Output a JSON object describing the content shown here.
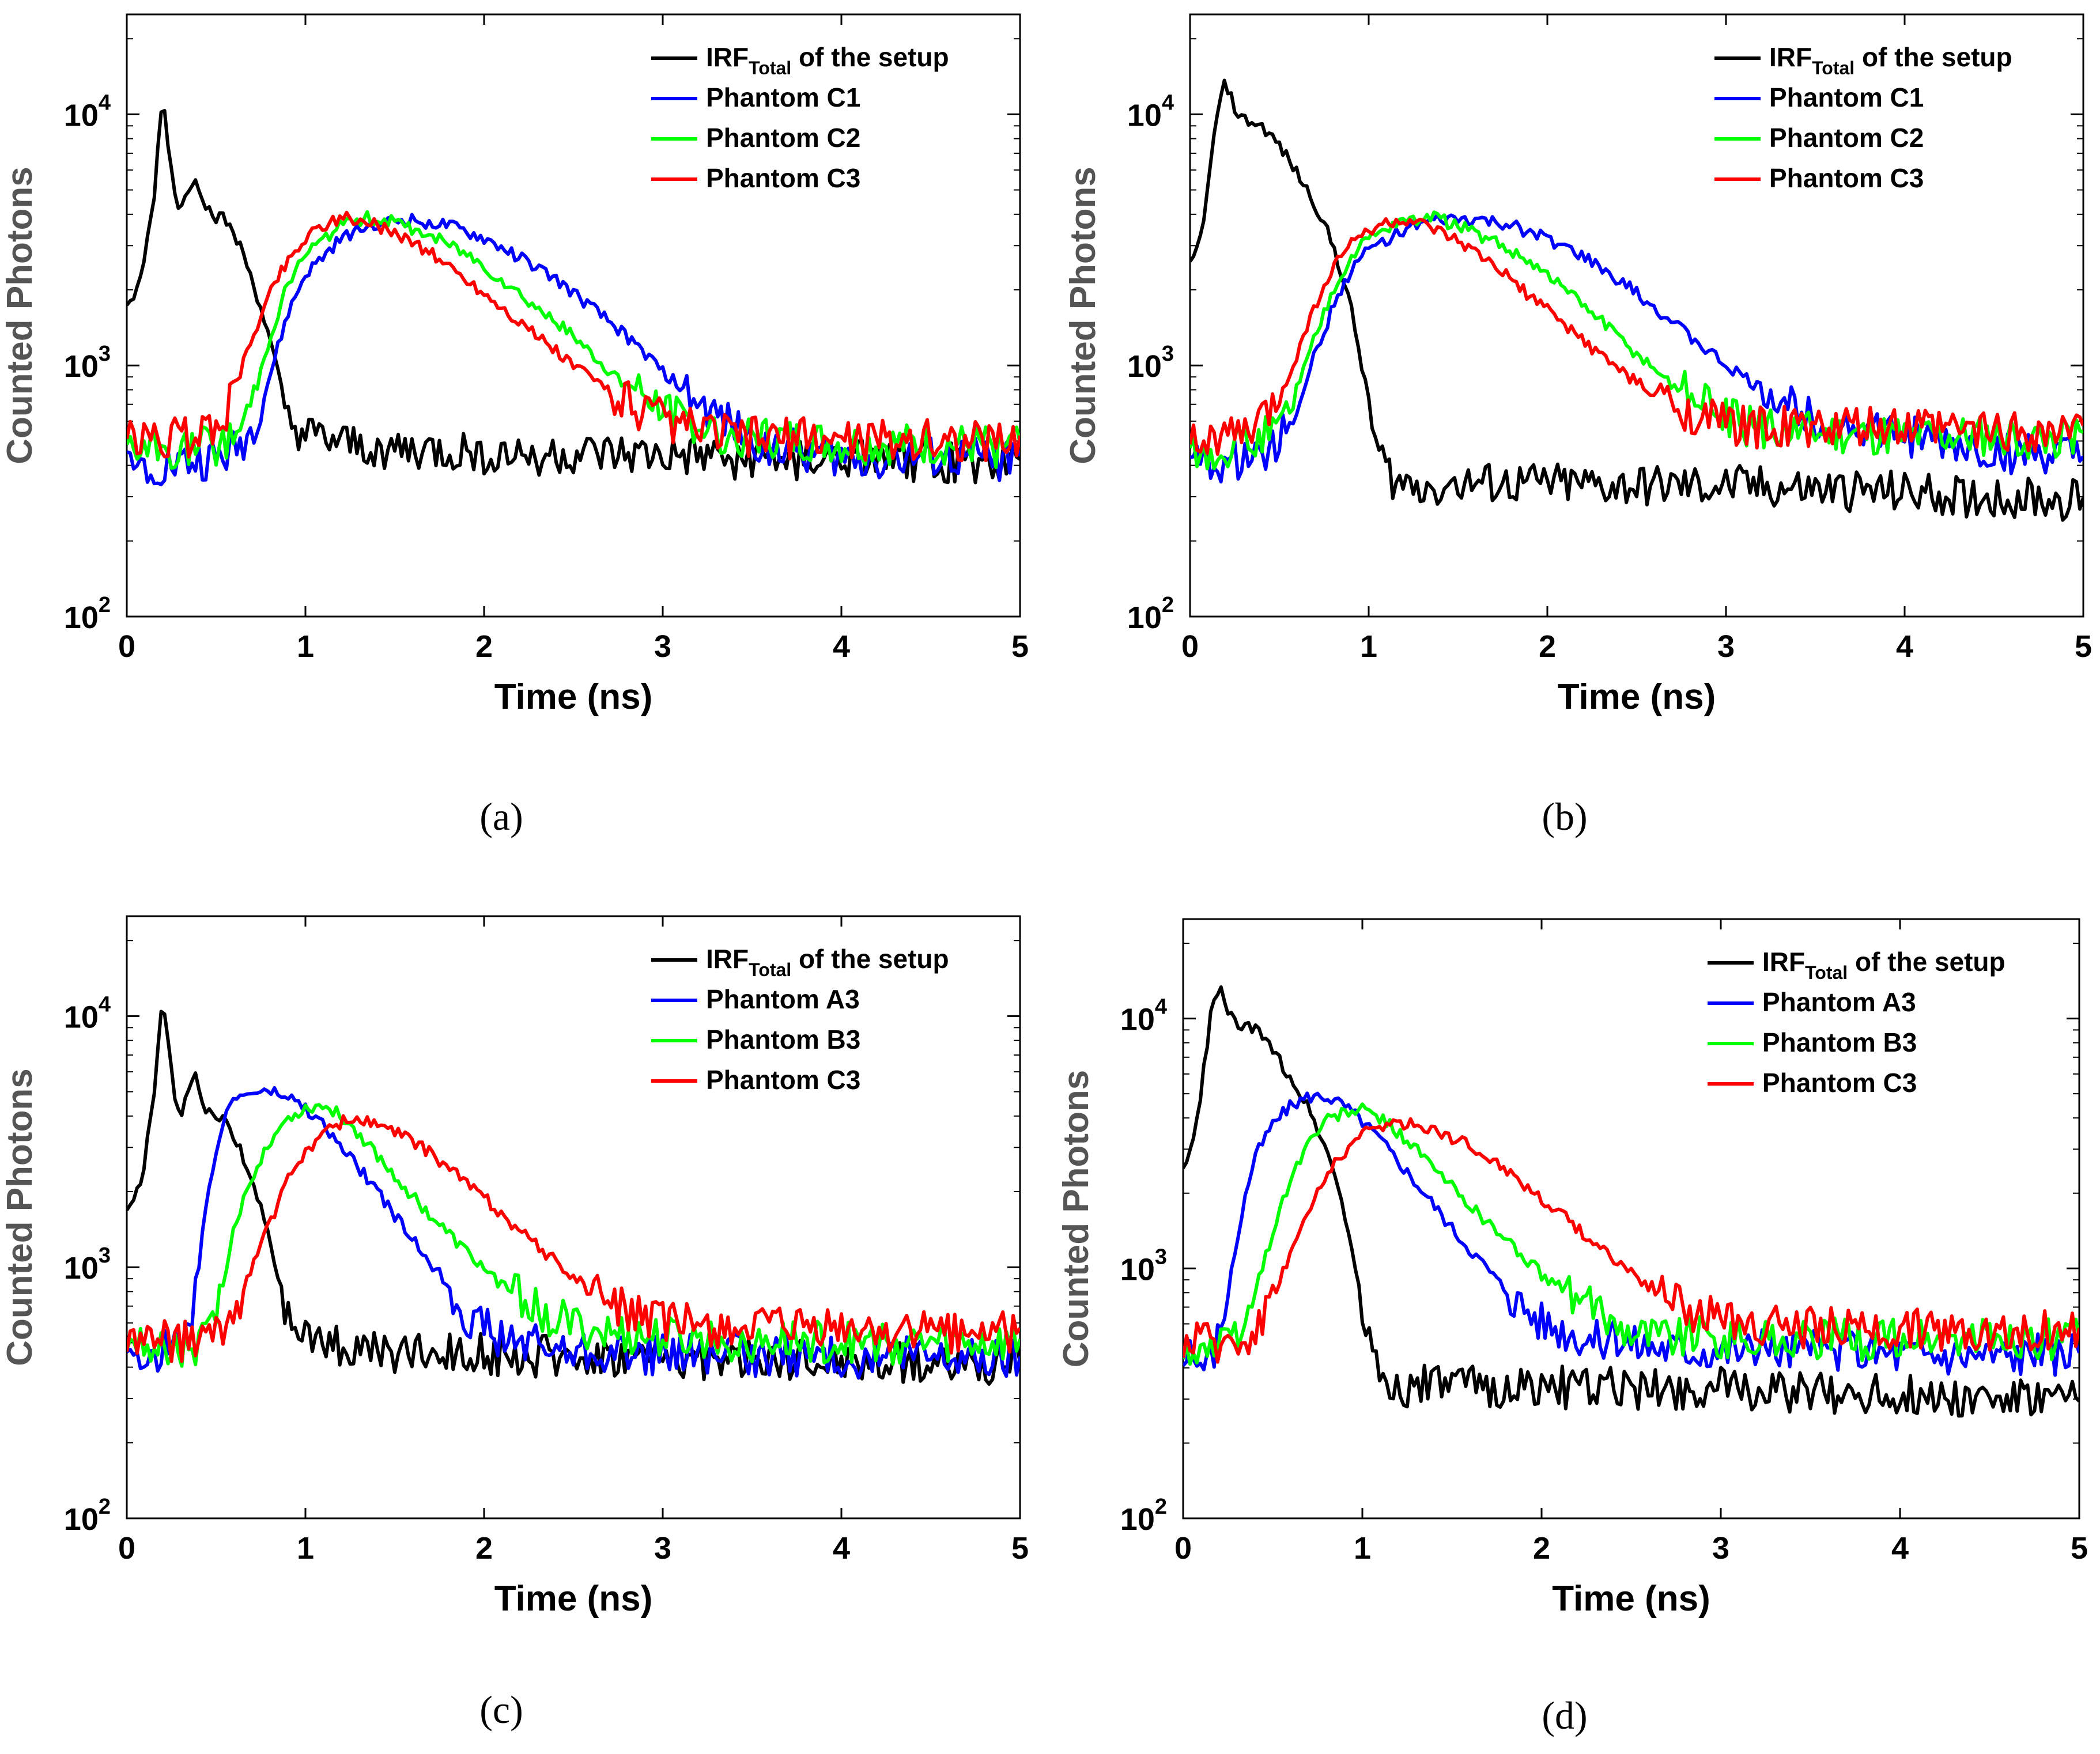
{
  "figure": {
    "panels_caption": [
      "(a)",
      "(b)",
      "(c)",
      "(d)"
    ]
  },
  "chart_data": [
    {
      "type": "line",
      "panel": "(a)",
      "xlabel": "Time (ns)",
      "ylabel": "Counted Photons",
      "xlim": [
        0,
        5
      ],
      "ylim": [
        100,
        25000
      ],
      "yscale": "log",
      "xticks": [
        "0",
        "1",
        "2",
        "3",
        "4",
        "5"
      ],
      "yticks": [
        {
          "base": "10",
          "exp": "2"
        },
        {
          "base": "10",
          "exp": "3"
        },
        {
          "base": "10",
          "exp": "4"
        }
      ],
      "legend_position": "top-right",
      "series": [
        {
          "name": "IRF",
          "name_sub": "Total",
          "name_suffix": " of the setup",
          "color": "#000000",
          "x": [
            0,
            0.08,
            0.15,
            0.2,
            0.26,
            0.3,
            0.38,
            0.45,
            0.5,
            0.55,
            0.6,
            0.65,
            0.7,
            0.75,
            0.8,
            0.85,
            0.9,
            1.0,
            1.3,
            1.8,
            2.5,
            3.2,
            4.0,
            5.0
          ],
          "y": [
            1650,
            2200,
            4500,
            12000,
            5200,
            4100,
            5800,
            4200,
            3900,
            3800,
            3300,
            2800,
            2200,
            1700,
            1250,
            900,
            600,
            520,
            470,
            450,
            440,
            430,
            420,
            410
          ]
        },
        {
          "name": "Phantom C1",
          "color": "#0000ff",
          "x": [
            0,
            0.3,
            0.5,
            0.6,
            0.7,
            0.8,
            0.9,
            1.0,
            1.2,
            1.4,
            1.6,
            1.8,
            2.0,
            2.2,
            2.4,
            2.6,
            2.8,
            3.0,
            3.2,
            3.5,
            4.0,
            5.0
          ],
          "y": [
            400,
            410,
            420,
            450,
            550,
            900,
            1600,
            2300,
            3200,
            3700,
            3800,
            3600,
            3200,
            2700,
            2200,
            1700,
            1300,
            950,
            700,
            500,
            430,
            420
          ]
        },
        {
          "name": "Phantom C2",
          "color": "#00ff00",
          "x": [
            0,
            0.3,
            0.5,
            0.6,
            0.7,
            0.8,
            0.9,
            1.0,
            1.2,
            1.35,
            1.5,
            1.7,
            1.9,
            2.1,
            2.3,
            2.5,
            2.7,
            2.9,
            3.1,
            3.4,
            4.0,
            5.0
          ],
          "y": [
            450,
            460,
            480,
            520,
            700,
            1300,
            2100,
            2800,
            3600,
            3900,
            3700,
            3300,
            2800,
            2200,
            1700,
            1300,
            950,
            750,
            600,
            520,
            480,
            470
          ]
        },
        {
          "name": "Phantom C3",
          "color": "#ff0000",
          "x": [
            0,
            0.3,
            0.45,
            0.55,
            0.65,
            0.75,
            0.85,
            0.95,
            1.05,
            1.2,
            1.35,
            1.5,
            1.7,
            1.9,
            2.1,
            2.3,
            2.5,
            2.7,
            2.9,
            3.1,
            3.5,
            4.0,
            5.0
          ],
          "y": [
            500,
            510,
            540,
            650,
            1000,
            1600,
            2300,
            2900,
            3500,
            3900,
            3700,
            3400,
            2800,
            2200,
            1700,
            1300,
            1000,
            800,
            650,
            560,
            520,
            510,
            500
          ]
        }
      ]
    },
    {
      "type": "line",
      "panel": "(b)",
      "xlabel": "Time (ns)",
      "ylabel": "Counted Photons",
      "xlim": [
        0,
        5
      ],
      "ylim": [
        100,
        25000
      ],
      "yscale": "log",
      "xticks": [
        "0",
        "1",
        "2",
        "3",
        "4",
        "5"
      ],
      "yticks": [
        {
          "base": "10",
          "exp": "2"
        },
        {
          "base": "10",
          "exp": "3"
        },
        {
          "base": "10",
          "exp": "4"
        }
      ],
      "legend_position": "top-right",
      "series": [
        {
          "name": "IRF",
          "name_sub": "Total",
          "name_suffix": " of the setup",
          "color": "#000000",
          "x": [
            0,
            0.05,
            0.1,
            0.15,
            0.2,
            0.25,
            0.3,
            0.4,
            0.5,
            0.6,
            0.7,
            0.8,
            0.85,
            0.9,
            0.95,
            1.0,
            1.05,
            1.15,
            1.5,
            2.0,
            2.5,
            3.0,
            3.5,
            4.0,
            4.5,
            5.0
          ],
          "y": [
            2500,
            3000,
            5000,
            10000,
            13500,
            10500,
            9500,
            9000,
            7500,
            5800,
            4400,
            3000,
            2300,
            1700,
            1100,
            700,
            450,
            340,
            340,
            335,
            330,
            330,
            320,
            310,
            300,
            290
          ]
        },
        {
          "name": "Phantom C1",
          "color": "#0000ff",
          "x": [
            0,
            0.3,
            0.5,
            0.6,
            0.7,
            0.8,
            0.9,
            1.0,
            1.2,
            1.4,
            1.6,
            1.8,
            2.0,
            2.2,
            2.4,
            2.6,
            2.8,
            3.0,
            3.2,
            3.5,
            4.0,
            4.5,
            5.0
          ],
          "y": [
            400,
            420,
            500,
            700,
            1100,
            1700,
            2400,
            2900,
            3500,
            3800,
            3800,
            3600,
            3200,
            2700,
            2200,
            1700,
            1300,
            1000,
            800,
            620,
            520,
            450,
            420
          ]
        },
        {
          "name": "Phantom C2",
          "color": "#00ff00",
          "x": [
            0,
            0.3,
            0.5,
            0.6,
            0.7,
            0.8,
            0.9,
            1.0,
            1.2,
            1.35,
            1.5,
            1.7,
            1.9,
            2.1,
            2.3,
            2.5,
            2.7,
            2.9,
            3.1,
            3.4,
            4.0,
            5.0
          ],
          "y": [
            460,
            480,
            560,
            800,
            1300,
            2000,
            2700,
            3200,
            3800,
            3900,
            3600,
            3100,
            2600,
            2000,
            1500,
            1100,
            850,
            680,
            580,
            540,
            520,
            520
          ]
        },
        {
          "name": "Phantom C3",
          "color": "#ff0000",
          "x": [
            0,
            0.3,
            0.45,
            0.55,
            0.65,
            0.75,
            0.85,
            0.95,
            1.05,
            1.2,
            1.35,
            1.5,
            1.7,
            1.9,
            2.1,
            2.3,
            2.5,
            2.7,
            2.9,
            3.1,
            3.5,
            4.0,
            5.0
          ],
          "y": [
            500,
            530,
            650,
            900,
            1400,
            2100,
            2800,
            3300,
            3600,
            3800,
            3500,
            3100,
            2500,
            1900,
            1450,
            1100,
            850,
            700,
            610,
            570,
            560,
            560,
            550
          ]
        }
      ]
    },
    {
      "type": "line",
      "panel": "(c)",
      "xlabel": "Time (ns)",
      "ylabel": "Counted Photons",
      "xlim": [
        0,
        5
      ],
      "ylim": [
        100,
        25000
      ],
      "yscale": "log",
      "xticks": [
        "0",
        "1",
        "2",
        "3",
        "4",
        "5"
      ],
      "yticks": [
        {
          "base": "10",
          "exp": "2"
        },
        {
          "base": "10",
          "exp": "3"
        },
        {
          "base": "10",
          "exp": "4"
        }
      ],
      "legend_position": "top-right",
      "series": [
        {
          "name": "IRF",
          "name_sub": "Total",
          "name_suffix": " of the setup",
          "color": "#000000",
          "x": [
            0,
            0.08,
            0.15,
            0.2,
            0.26,
            0.3,
            0.38,
            0.45,
            0.5,
            0.55,
            0.6,
            0.65,
            0.7,
            0.75,
            0.8,
            0.85,
            0.9,
            1.0,
            1.3,
            1.8,
            2.5,
            3.2,
            4.0,
            5.0
          ],
          "y": [
            1650,
            2200,
            4500,
            12000,
            5200,
            4100,
            5800,
            4200,
            3900,
            3800,
            3300,
            2800,
            2200,
            1700,
            1250,
            900,
            600,
            520,
            470,
            450,
            440,
            430,
            420,
            410
          ]
        },
        {
          "name": "Phantom A3",
          "color": "#0000ff",
          "x": [
            0,
            0.3,
            0.35,
            0.4,
            0.45,
            0.5,
            0.55,
            0.6,
            0.7,
            0.8,
            0.9,
            1.0,
            1.1,
            1.2,
            1.3,
            1.4,
            1.5,
            1.6,
            1.7,
            1.8,
            1.9,
            2.1,
            2.4,
            3.0,
            4.0,
            5.0
          ],
          "y": [
            450,
            470,
            600,
            1000,
            1800,
            3000,
            4000,
            4700,
            5000,
            5000,
            4800,
            4300,
            3700,
            3000,
            2500,
            2000,
            1600,
            1300,
            1050,
            850,
            650,
            520,
            470,
            450,
            440,
            430
          ]
        },
        {
          "name": "Phantom B3",
          "color": "#00ff00",
          "x": [
            0,
            0.4,
            0.5,
            0.55,
            0.6,
            0.7,
            0.8,
            0.9,
            1.0,
            1.1,
            1.2,
            1.3,
            1.4,
            1.5,
            1.7,
            1.9,
            2.1,
            2.3,
            2.5,
            2.7,
            3.0,
            3.5,
            4.0,
            5.0
          ],
          "y": [
            480,
            490,
            600,
            900,
            1400,
            2300,
            3200,
            3900,
            4300,
            4400,
            4000,
            3400,
            2800,
            2300,
            1600,
            1150,
            850,
            680,
            580,
            540,
            520,
            510,
            500,
            500
          ]
        },
        {
          "name": "Phantom C3",
          "color": "#ff0000",
          "x": [
            0,
            0.5,
            0.6,
            0.7,
            0.8,
            0.9,
            1.0,
            1.1,
            1.2,
            1.3,
            1.4,
            1.6,
            1.8,
            2.0,
            2.2,
            2.4,
            2.6,
            2.8,
            3.0,
            3.5,
            4.0,
            5.0
          ],
          "y": [
            500,
            520,
            650,
            1000,
            1500,
            2200,
            2900,
            3400,
            3800,
            3900,
            3700,
            3200,
            2500,
            1900,
            1400,
            1050,
            800,
            670,
            600,
            570,
            560,
            550
          ]
        }
      ]
    },
    {
      "type": "line",
      "panel": "(d)",
      "xlabel": "Time (ns)",
      "ylabel": "Counted Photons",
      "xlim": [
        0,
        5
      ],
      "ylim": [
        100,
        25000
      ],
      "yscale": "log",
      "xticks": [
        "0",
        "1",
        "2",
        "3",
        "4",
        "5"
      ],
      "yticks": [
        {
          "base": "10",
          "exp": "2"
        },
        {
          "base": "10",
          "exp": "3"
        },
        {
          "base": "10",
          "exp": "4"
        }
      ],
      "legend_position": "top-right",
      "series": [
        {
          "name": "IRF",
          "name_sub": "Total",
          "name_suffix": " of the setup",
          "color": "#000000",
          "x": [
            0,
            0.05,
            0.1,
            0.15,
            0.2,
            0.25,
            0.3,
            0.4,
            0.5,
            0.6,
            0.7,
            0.8,
            0.85,
            0.9,
            0.95,
            1.0,
            1.05,
            1.15,
            1.5,
            2.0,
            2.5,
            3.0,
            3.5,
            4.0,
            4.5,
            5.0
          ],
          "y": [
            2500,
            3000,
            5000,
            10000,
            13500,
            10500,
            9500,
            9000,
            7500,
            5800,
            4400,
            3000,
            2300,
            1700,
            1100,
            700,
            450,
            340,
            340,
            335,
            330,
            330,
            320,
            310,
            300,
            290
          ]
        },
        {
          "name": "Phantom A3",
          "color": "#0000ff",
          "x": [
            0,
            0.15,
            0.2,
            0.25,
            0.3,
            0.35,
            0.4,
            0.5,
            0.6,
            0.7,
            0.8,
            0.9,
            1.0,
            1.1,
            1.2,
            1.3,
            1.4,
            1.5,
            1.6,
            1.7,
            1.8,
            2.0,
            2.3,
            2.8,
            3.5,
            4.0,
            5.0
          ],
          "y": [
            420,
            430,
            550,
            800,
            1300,
            2000,
            2800,
            3800,
            4500,
            4900,
            4900,
            4500,
            3900,
            3300,
            2700,
            2200,
            1800,
            1450,
            1200,
            1000,
            820,
            620,
            520,
            480,
            470,
            460,
            450
          ]
        },
        {
          "name": "Phantom B3",
          "color": "#00ff00",
          "x": [
            0,
            0.25,
            0.35,
            0.4,
            0.5,
            0.6,
            0.7,
            0.8,
            0.9,
            1.0,
            1.1,
            1.2,
            1.3,
            1.4,
            1.6,
            1.8,
            2.0,
            2.2,
            2.4,
            2.6,
            3.0,
            3.5,
            4.0,
            5.0
          ],
          "y": [
            470,
            490,
            600,
            800,
            1400,
            2300,
            3200,
            3900,
            4200,
            4300,
            4000,
            3500,
            3000,
            2500,
            1800,
            1300,
            950,
            750,
            620,
            560,
            530,
            520,
            520,
            520
          ]
        },
        {
          "name": "Phantom C3",
          "color": "#ff0000",
          "x": [
            0,
            0.35,
            0.45,
            0.55,
            0.65,
            0.75,
            0.85,
            0.95,
            1.05,
            1.15,
            1.25,
            1.4,
            1.6,
            1.8,
            2.0,
            2.2,
            2.4,
            2.6,
            2.8,
            3.0,
            3.5,
            4.0,
            5.0
          ],
          "y": [
            500,
            520,
            650,
            950,
            1400,
            2000,
            2700,
            3200,
            3600,
            3800,
            3800,
            3600,
            3100,
            2500,
            1900,
            1450,
            1100,
            850,
            700,
            620,
            580,
            570,
            560
          ]
        }
      ]
    }
  ]
}
